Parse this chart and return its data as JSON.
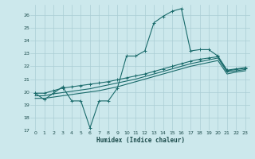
{
  "xlabel": "Humidex (Indice chaleur)",
  "xlim": [
    -0.5,
    23.5
  ],
  "ylim": [
    17,
    26.8
  ],
  "yticks": [
    17,
    18,
    19,
    20,
    21,
    22,
    23,
    24,
    25,
    26
  ],
  "xticks": [
    0,
    1,
    2,
    3,
    4,
    5,
    6,
    7,
    8,
    9,
    10,
    11,
    12,
    13,
    14,
    15,
    16,
    17,
    18,
    19,
    20,
    21,
    22,
    23
  ],
  "bg_color": "#cce8ec",
  "grid_color": "#aacdd4",
  "line_color": "#1a6b6b",
  "line1_y": [
    19.9,
    19.4,
    19.9,
    20.4,
    19.3,
    19.3,
    17.2,
    19.3,
    19.3,
    20.3,
    22.8,
    22.8,
    23.2,
    25.4,
    25.9,
    26.3,
    26.5,
    23.2,
    23.3,
    23.3,
    22.8,
    21.7,
    21.8,
    21.9
  ],
  "line2_y": [
    19.9,
    19.9,
    20.1,
    20.3,
    20.4,
    20.5,
    20.6,
    20.7,
    20.8,
    20.95,
    21.1,
    21.25,
    21.4,
    21.6,
    21.8,
    22.0,
    22.2,
    22.4,
    22.55,
    22.65,
    22.75,
    21.65,
    21.75,
    21.85
  ],
  "line3_y": [
    19.7,
    19.7,
    19.85,
    19.95,
    20.05,
    20.15,
    20.25,
    20.4,
    20.55,
    20.7,
    20.85,
    21.0,
    21.2,
    21.4,
    21.6,
    21.8,
    22.0,
    22.2,
    22.35,
    22.5,
    22.65,
    21.55,
    21.65,
    21.75
  ],
  "line4_y": [
    19.5,
    19.5,
    19.6,
    19.7,
    19.8,
    19.9,
    20.0,
    20.1,
    20.25,
    20.4,
    20.6,
    20.8,
    21.0,
    21.2,
    21.4,
    21.6,
    21.8,
    22.0,
    22.15,
    22.3,
    22.45,
    21.4,
    21.55,
    21.65
  ]
}
